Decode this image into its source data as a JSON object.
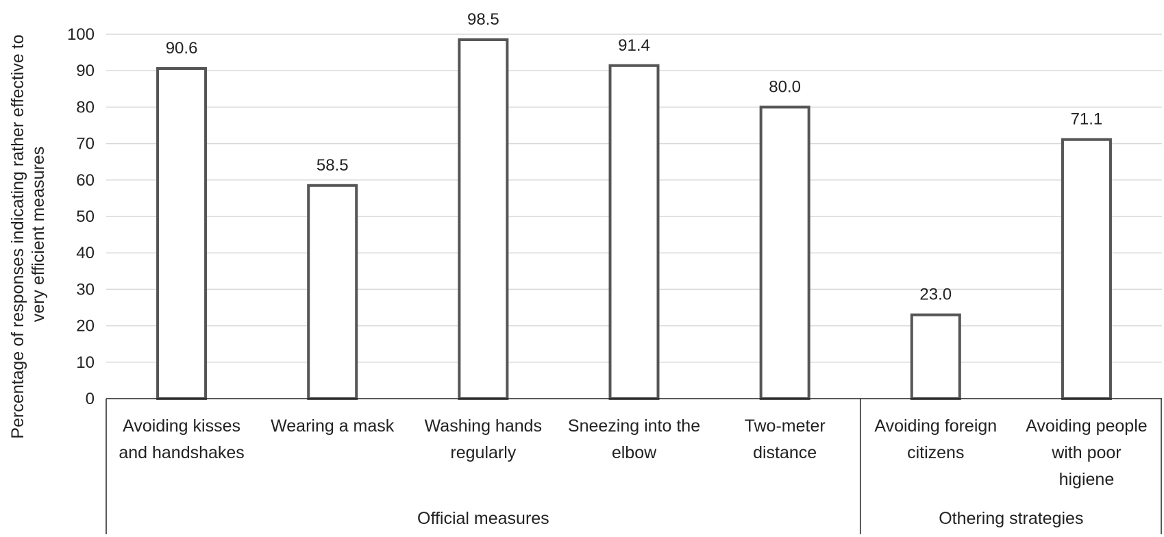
{
  "chart_data": {
    "type": "bar",
    "title": "",
    "ylabel_lines": [
      "Percentage of responses indicating rather effective to",
      "very efficient measures"
    ],
    "ylim": [
      0,
      100
    ],
    "yticks": [
      "0",
      "10",
      "20",
      "30",
      "40",
      "50",
      "60",
      "70",
      "80",
      "90",
      "100"
    ],
    "grid": true,
    "categories": [
      {
        "lines": [
          "Avoiding kisses",
          "and handshakes"
        ]
      },
      {
        "lines": [
          "Wearing a mask"
        ]
      },
      {
        "lines": [
          "Washing hands",
          "regularly"
        ]
      },
      {
        "lines": [
          "Sneezing into the",
          "elbow"
        ]
      },
      {
        "lines": [
          "Two-meter",
          "distance"
        ]
      },
      {
        "lines": [
          "Avoiding foreign",
          "citizens"
        ]
      },
      {
        "lines": [
          "Avoiding people",
          "with poor",
          "higiene"
        ]
      }
    ],
    "values": [
      90.6,
      58.5,
      98.5,
      91.4,
      80.0,
      23.0,
      71.1
    ],
    "data_labels": [
      "90.6",
      "58.5",
      "98.5",
      "91.4",
      "80.0",
      "23.0",
      "71.1"
    ],
    "groups": [
      {
        "label": "Official measures",
        "start": 0,
        "end": 4
      },
      {
        "label": "Othering strategies",
        "start": 5,
        "end": 6
      }
    ],
    "colors": {
      "bar_fill": "#ffffff",
      "bar_stroke": "#555555",
      "grid": "#d9d9d9",
      "axis": "#222222"
    }
  }
}
